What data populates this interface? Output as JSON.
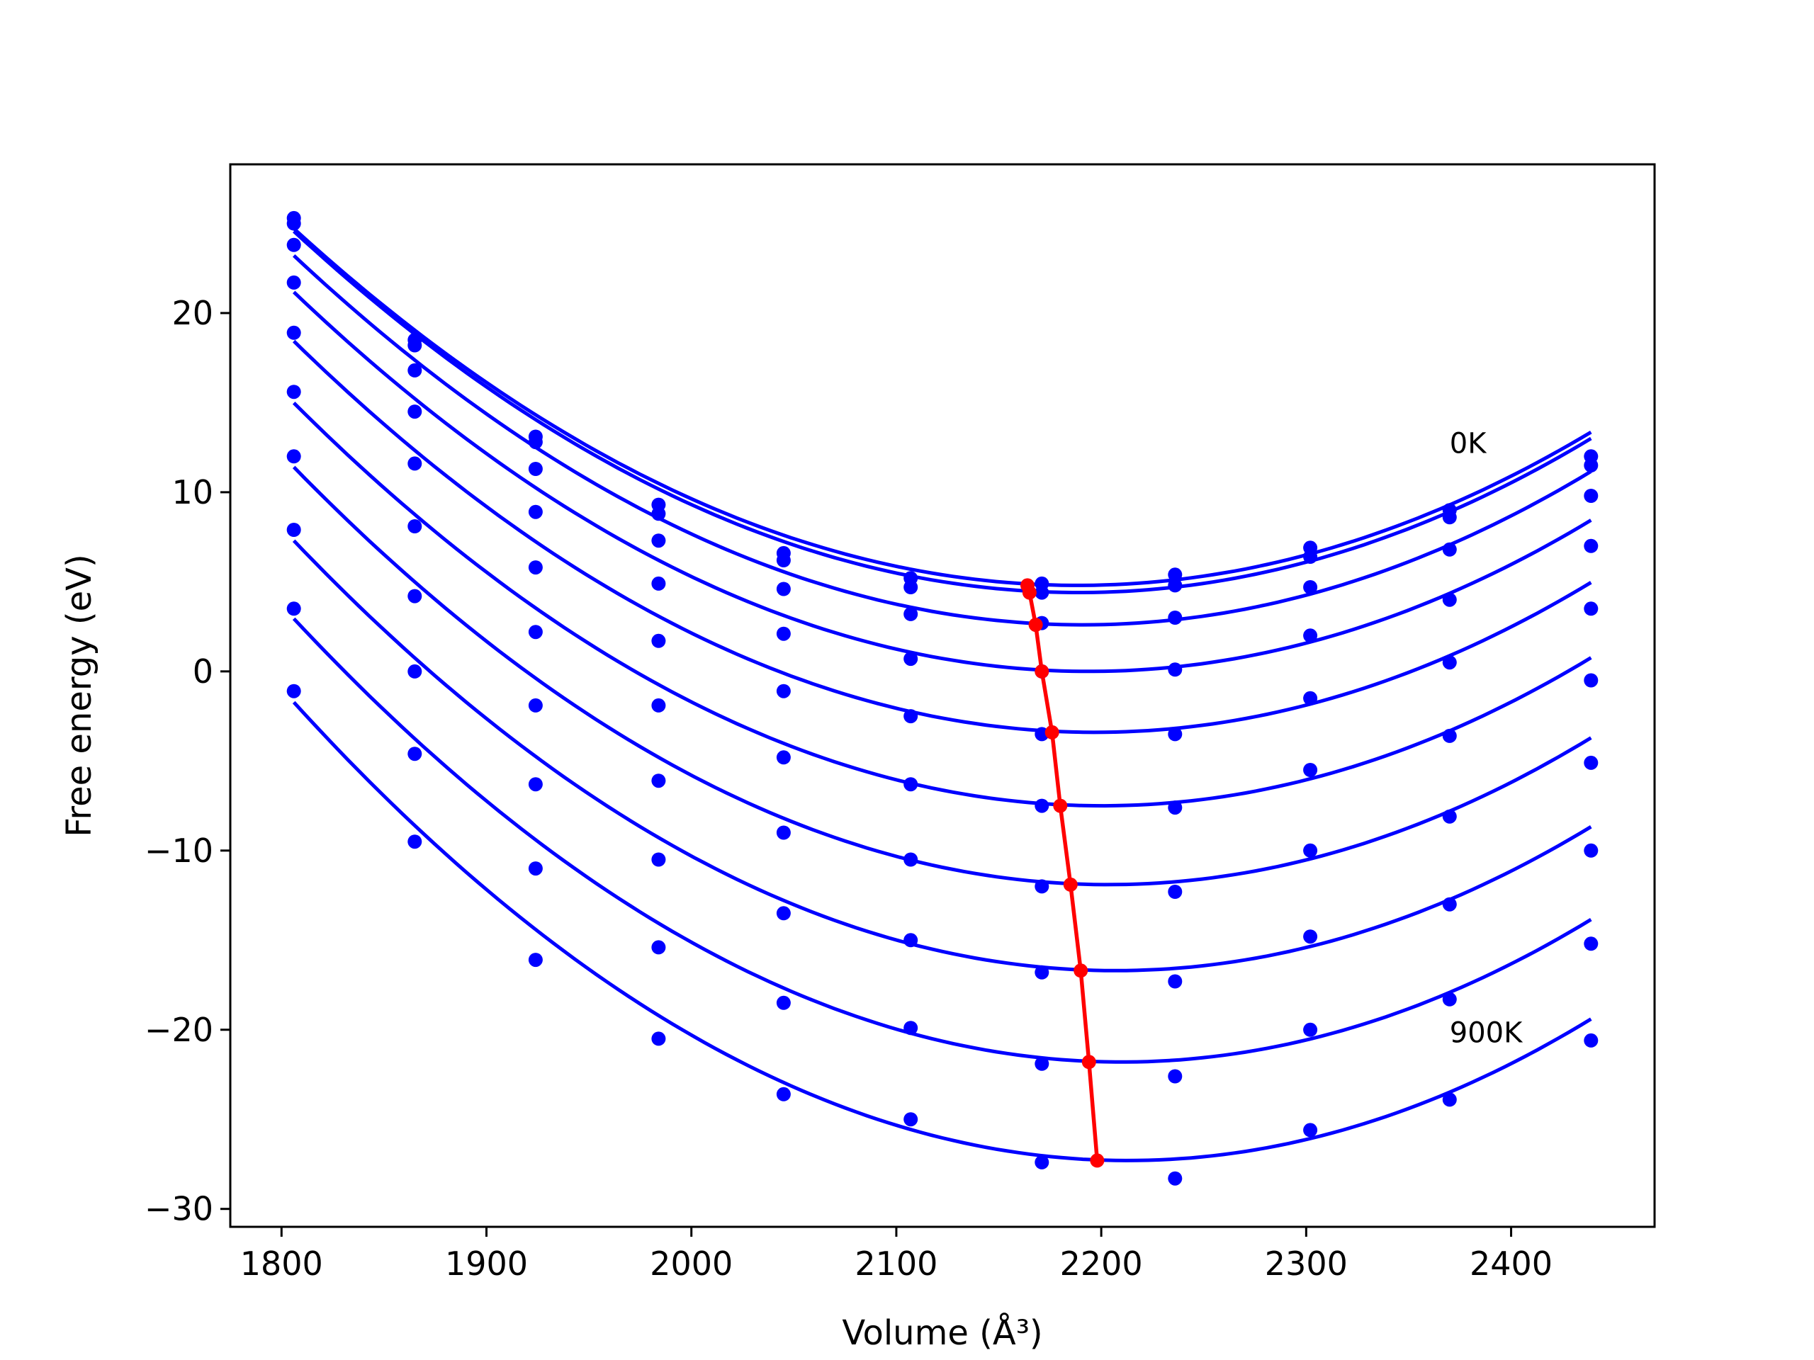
{
  "chart_data": {
    "type": "line",
    "xlabel": "Volume (Å³)",
    "ylabel": "Free energy (eV)",
    "xlim": [
      1775,
      2470
    ],
    "ylim": [
      -31,
      28.3
    ],
    "x_ticks": [
      1800,
      1900,
      2000,
      2100,
      2200,
      2300,
      2400
    ],
    "x_tick_labels": [
      "1800",
      "1900",
      "2000",
      "2100",
      "2200",
      "2300",
      "2400"
    ],
    "y_ticks": [
      -30,
      -20,
      -10,
      0,
      10,
      20
    ],
    "y_tick_labels": [
      "−30",
      "−20",
      "−10",
      "0",
      "10",
      "20"
    ],
    "grid": false,
    "legend": "none",
    "annotations": [
      {
        "text": "0K",
        "x": 2370,
        "y": 12.2
      },
      {
        "text": "900K",
        "x": 2370,
        "y": -20.7
      }
    ],
    "colors": {
      "data": "#0000ff",
      "minima": "#ff0000",
      "axes": "#000000"
    },
    "x": [
      1806,
      1865,
      1924,
      1984,
      2045,
      2107,
      2171,
      2236,
      2302,
      2370,
      2439
    ],
    "series": [
      {
        "values": [
          25.3,
          18.5,
          13.1,
          9.3,
          6.6,
          5.2,
          4.9,
          5.4,
          6.9,
          9.0,
          12.0
        ],
        "fit_min": [
          2164,
          4.8
        ]
      },
      {
        "values": [
          25.0,
          18.2,
          12.8,
          8.8,
          6.2,
          4.7,
          4.4,
          4.8,
          6.4,
          8.6,
          11.5
        ],
        "fit_min": [
          2165,
          4.4
        ]
      },
      {
        "values": [
          23.8,
          16.8,
          11.3,
          7.3,
          4.6,
          3.2,
          2.7,
          3.0,
          4.7,
          6.8,
          9.8
        ],
        "fit_min": [
          2168,
          2.6
        ]
      },
      {
        "values": [
          21.7,
          14.5,
          8.9,
          4.9,
          2.1,
          0.7,
          0.0,
          0.1,
          2.0,
          4.0,
          7.0
        ],
        "fit_min": [
          2171,
          0.0
        ]
      },
      {
        "values": [
          18.9,
          11.6,
          5.8,
          1.7,
          -1.1,
          -2.5,
          -3.5,
          -3.5,
          -1.5,
          0.5,
          3.5
        ],
        "fit_min": [
          2176,
          -3.4
        ]
      },
      {
        "values": [
          15.6,
          8.1,
          2.2,
          -1.9,
          -4.8,
          -6.3,
          -7.5,
          -7.6,
          -5.5,
          -3.6,
          -0.5
        ],
        "fit_min": [
          2180,
          -7.5
        ]
      },
      {
        "values": [
          12.0,
          4.2,
          -1.9,
          -6.1,
          -9.0,
          -10.5,
          -12.0,
          -12.3,
          -10.0,
          -8.1,
          -5.1
        ],
        "fit_min": [
          2185,
          -11.9
        ]
      },
      {
        "values": [
          7.9,
          0.0,
          -6.3,
          -10.5,
          -13.5,
          -15.0,
          -16.8,
          -17.3,
          -14.8,
          -13.0,
          -10.0
        ],
        "fit_min": [
          2190,
          -16.7
        ]
      },
      {
        "values": [
          3.5,
          -4.6,
          -11.0,
          -15.4,
          -18.5,
          -19.9,
          -21.9,
          -22.6,
          -20.0,
          -18.3,
          -15.2
        ],
        "fit_min": [
          2194,
          -21.8
        ]
      },
      {
        "values": [
          -1.1,
          -9.5,
          -16.1,
          -20.5,
          -23.6,
          -25.0,
          -27.4,
          -28.3,
          -25.6,
          -23.9,
          -20.6
        ],
        "fit_min": [
          2198,
          -27.3
        ]
      }
    ]
  }
}
